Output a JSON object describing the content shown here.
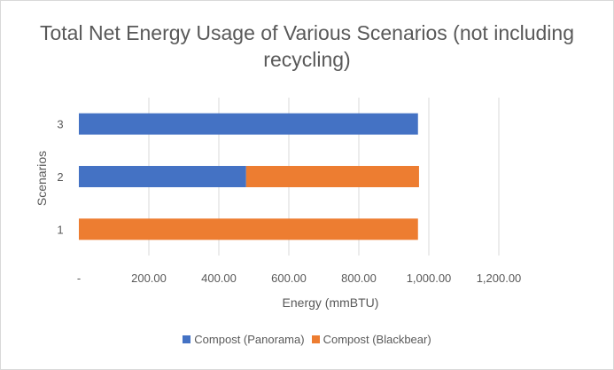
{
  "chart_data": {
    "type": "bar",
    "orientation": "horizontal",
    "stacked": true,
    "title": "Total Net Energy Usage of Various Scenarios (not including recycling)",
    "xlabel": "Energy (mmBTU)",
    "ylabel": "Scenarios",
    "categories": [
      "1",
      "2",
      "3"
    ],
    "series": [
      {
        "name": "Compost (Panorama)",
        "color": "#4472C4",
        "values": [
          0,
          478,
          969
        ]
      },
      {
        "name": "Compost (Blackbear)",
        "color": "#ED7D31",
        "values": [
          969,
          494,
          0
        ]
      }
    ],
    "xlim": [
      0,
      1400
    ],
    "xticks": [
      0,
      200,
      400,
      600,
      800,
      1000,
      1200
    ],
    "xtick_labels": [
      "-",
      "200.00",
      "400.00",
      "600.00",
      "800.00",
      "1,000.00",
      "1,200.00"
    ],
    "grid": "vertical",
    "legend": "bottom"
  }
}
